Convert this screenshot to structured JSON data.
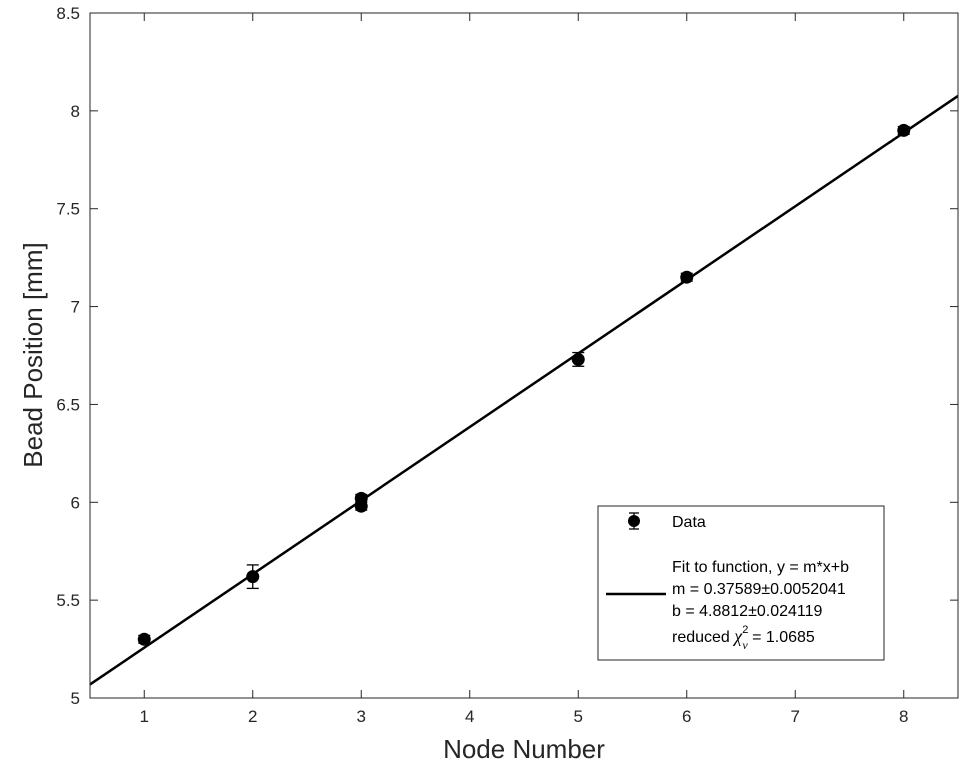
{
  "chart_data": {
    "type": "scatter",
    "xlabel": "Node Number",
    "ylabel": "Bead Position [mm]",
    "xlim": [
      0.5,
      8.5
    ],
    "ylim": [
      5,
      8.5
    ],
    "x_tick_positions": [
      1,
      2,
      3,
      4,
      5,
      6,
      7,
      8
    ],
    "x_tick_labels": [
      "1",
      "2",
      "3",
      "4",
      "5",
      "6",
      "7",
      "8"
    ],
    "y_ticks": [
      5,
      5.5,
      6,
      6.5,
      7,
      7.5,
      8,
      8.5
    ],
    "y_tick_labels": [
      "5",
      "5.5",
      "6",
      "6.5",
      "7",
      "7.5",
      "8",
      "8.5"
    ],
    "grid": false,
    "legend_position": "bottom-right",
    "series": [
      {
        "name": "Data",
        "kind": "errorbar",
        "color": "#000000",
        "points": [
          {
            "x": 1,
            "y": 5.3,
            "err": 0.02
          },
          {
            "x": 2,
            "y": 5.62,
            "err": 0.06
          },
          {
            "x": 3,
            "y": 6.02,
            "err": 0.02
          },
          {
            "x": 3,
            "y": 5.98,
            "err": 0.02
          },
          {
            "x": 5,
            "y": 6.73,
            "err": 0.035
          },
          {
            "x": 6,
            "y": 7.15,
            "err": 0.02
          },
          {
            "x": 8,
            "y": 7.9,
            "err": 0.02
          }
        ]
      },
      {
        "name": "Fit to function, y = m*x+b",
        "kind": "line",
        "color": "#000000",
        "slope": 0.37589,
        "intercept": 4.8812
      }
    ],
    "legend": {
      "data_label": "Data",
      "fit_line1": "Fit to function, y = m*x+b",
      "fit_line2": "m = 0.37589±0.0052041",
      "fit_line3": "b = 4.8812±0.024119",
      "fit_line4_prefix": "reduced ",
      "fit_line4_chi": "χ",
      "fit_line4_sup": "2",
      "fit_line4_sub": "ν",
      "fit_line4_suffix": " = 1.0685"
    }
  }
}
